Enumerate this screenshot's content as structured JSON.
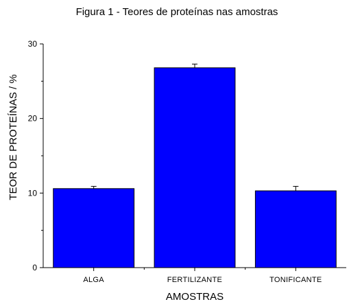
{
  "chart_data": {
    "type": "bar",
    "title": "Figura 1 - Teores de proteínas nas amostras",
    "xlabel": "AMOSTRAS",
    "ylabel": "TEOR DE PROTEÍNAS / %",
    "categories": [
      "ALGA",
      "FERTILIZANTE",
      "TONIFICANTE"
    ],
    "values": [
      10.6,
      26.8,
      10.3
    ],
    "error_bars": [
      0.3,
      0.5,
      0.6
    ],
    "ylim": [
      0,
      30
    ],
    "yticks": [
      0,
      10,
      20,
      30
    ],
    "grid": false,
    "legend": "none",
    "bar_color": "#0000FF",
    "bar_edge_color": "#000000"
  }
}
